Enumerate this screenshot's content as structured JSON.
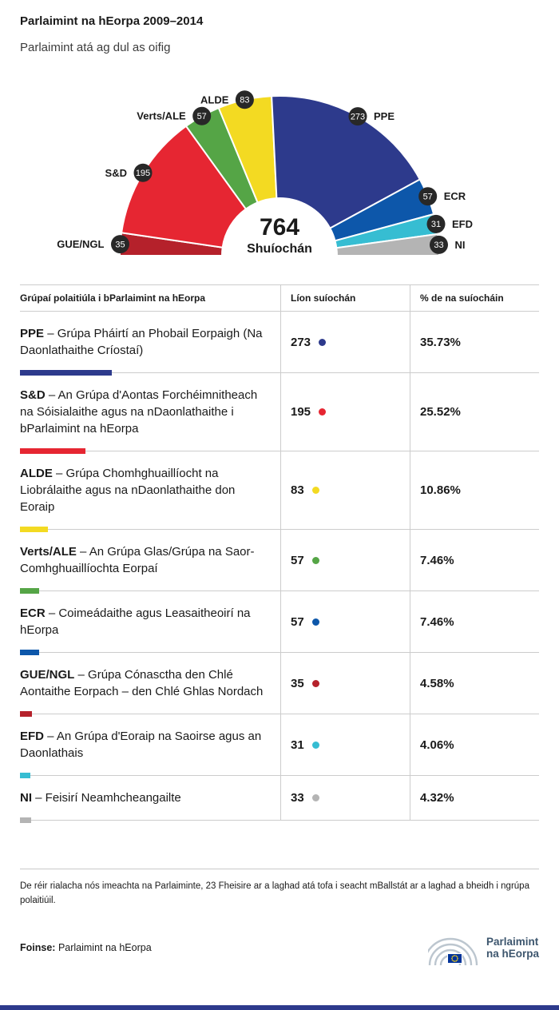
{
  "page": {
    "title": "Parlaimint na hEorpa 2009–2014",
    "subtitle": "Parlaimint atá ag dul as oifig"
  },
  "colors": {
    "badge": "#282828",
    "footer_bar": "#2d3a8c",
    "logo_text": "#3d566e",
    "eu_flag_blue": "#003399",
    "eu_flag_star": "#ffd617",
    "grid_line": "#cccccc"
  },
  "chart_data": {
    "type": "pie",
    "variant": "half-donut hemicycle (parliament seats)",
    "center_value": "764",
    "center_label": "Shuíochán",
    "total_seats": 764,
    "legend_position": "around-arc",
    "groups_arc_order": [
      {
        "label": "GUE/NGL",
        "seats": 35,
        "pct": 4.58,
        "color": "#b5212b"
      },
      {
        "label": "S&D",
        "seats": 195,
        "pct": 25.52,
        "color": "#e62632"
      },
      {
        "label": "Verts/ALE",
        "seats": 57,
        "pct": 7.46,
        "color": "#55a546"
      },
      {
        "label": "ALDE",
        "seats": 83,
        "pct": 10.86,
        "color": "#f3da22"
      },
      {
        "label": "PPE",
        "seats": 273,
        "pct": 35.73,
        "color": "#2d3a8c"
      },
      {
        "label": "ECR",
        "seats": 57,
        "pct": 7.46,
        "color": "#0d57aa"
      },
      {
        "label": "EFD",
        "seats": 31,
        "pct": 4.06,
        "color": "#36bdd2"
      },
      {
        "label": "NI",
        "seats": 33,
        "pct": 4.32,
        "color": "#b4b4b4"
      }
    ]
  },
  "table": {
    "headers": [
      "Grúpaí polaitiúla i bParlaimint na hEorpa",
      "Líon suíochán",
      "% de na suíocháin"
    ],
    "rows": [
      {
        "abbr": "PPE",
        "rest": "– Grúpa Pháirtí an Phobail Eorpaigh (Na Daonlathaithe Críostaí)",
        "seats": "273",
        "pct": "35.73%",
        "color": "#2d3a8c"
      },
      {
        "abbr": "S&D",
        "rest": "– An Grúpa d'Aontas Forchéimnitheach na Sóisialaithe agus na nDaonlathaithe i bParlaimint na hEorpa",
        "seats": "195",
        "pct": "25.52%",
        "color": "#e62632"
      },
      {
        "abbr": "ALDE",
        "rest": "– Grúpa Chomhghuaillíocht na Liobrálaithe agus na nDaonlathaithe don Eoraip",
        "seats": "83",
        "pct": "10.86%",
        "color": "#f3da22"
      },
      {
        "abbr": "Verts/ALE",
        "rest": "– An Grúpa Glas/Grúpa na Saor-Comhghuaillíochta Eorpaí",
        "seats": "57",
        "pct": "7.46%",
        "color": "#55a546"
      },
      {
        "abbr": "ECR",
        "rest": "– Coimeádaithe agus Leasaitheoirí na hEorpa",
        "seats": "57",
        "pct": "7.46%",
        "color": "#0d57aa"
      },
      {
        "abbr": "GUE/NGL",
        "rest": "– Grúpa Cónasctha den Chlé Aontaithe Eorpach – den Chlé Ghlas Nordach",
        "seats": "35",
        "pct": "4.58%",
        "color": "#b5212b"
      },
      {
        "abbr": "EFD",
        "rest": "– An Grúpa d'Eoraip na Saoirse agus an Daonlathais",
        "seats": "31",
        "pct": "4.06%",
        "color": "#36bdd2"
      },
      {
        "abbr": "NI",
        "rest": "– Feisirí Neamhcheangailte",
        "seats": "33",
        "pct": "4.32%",
        "color": "#b4b4b4"
      }
    ]
  },
  "footer": {
    "note": "De réir rialacha nós imeachta na Parlaiminte, 23 Fheisire ar a laghad atá tofa i seacht mBallstát ar a laghad a bheidh i ngrúpa polaitiúil.",
    "source_label": "Foinse:",
    "source_text": "Parlaimint na hEorpa",
    "logo_text_line1": "Parlaimint",
    "logo_text_line2": "na hEorpa"
  }
}
